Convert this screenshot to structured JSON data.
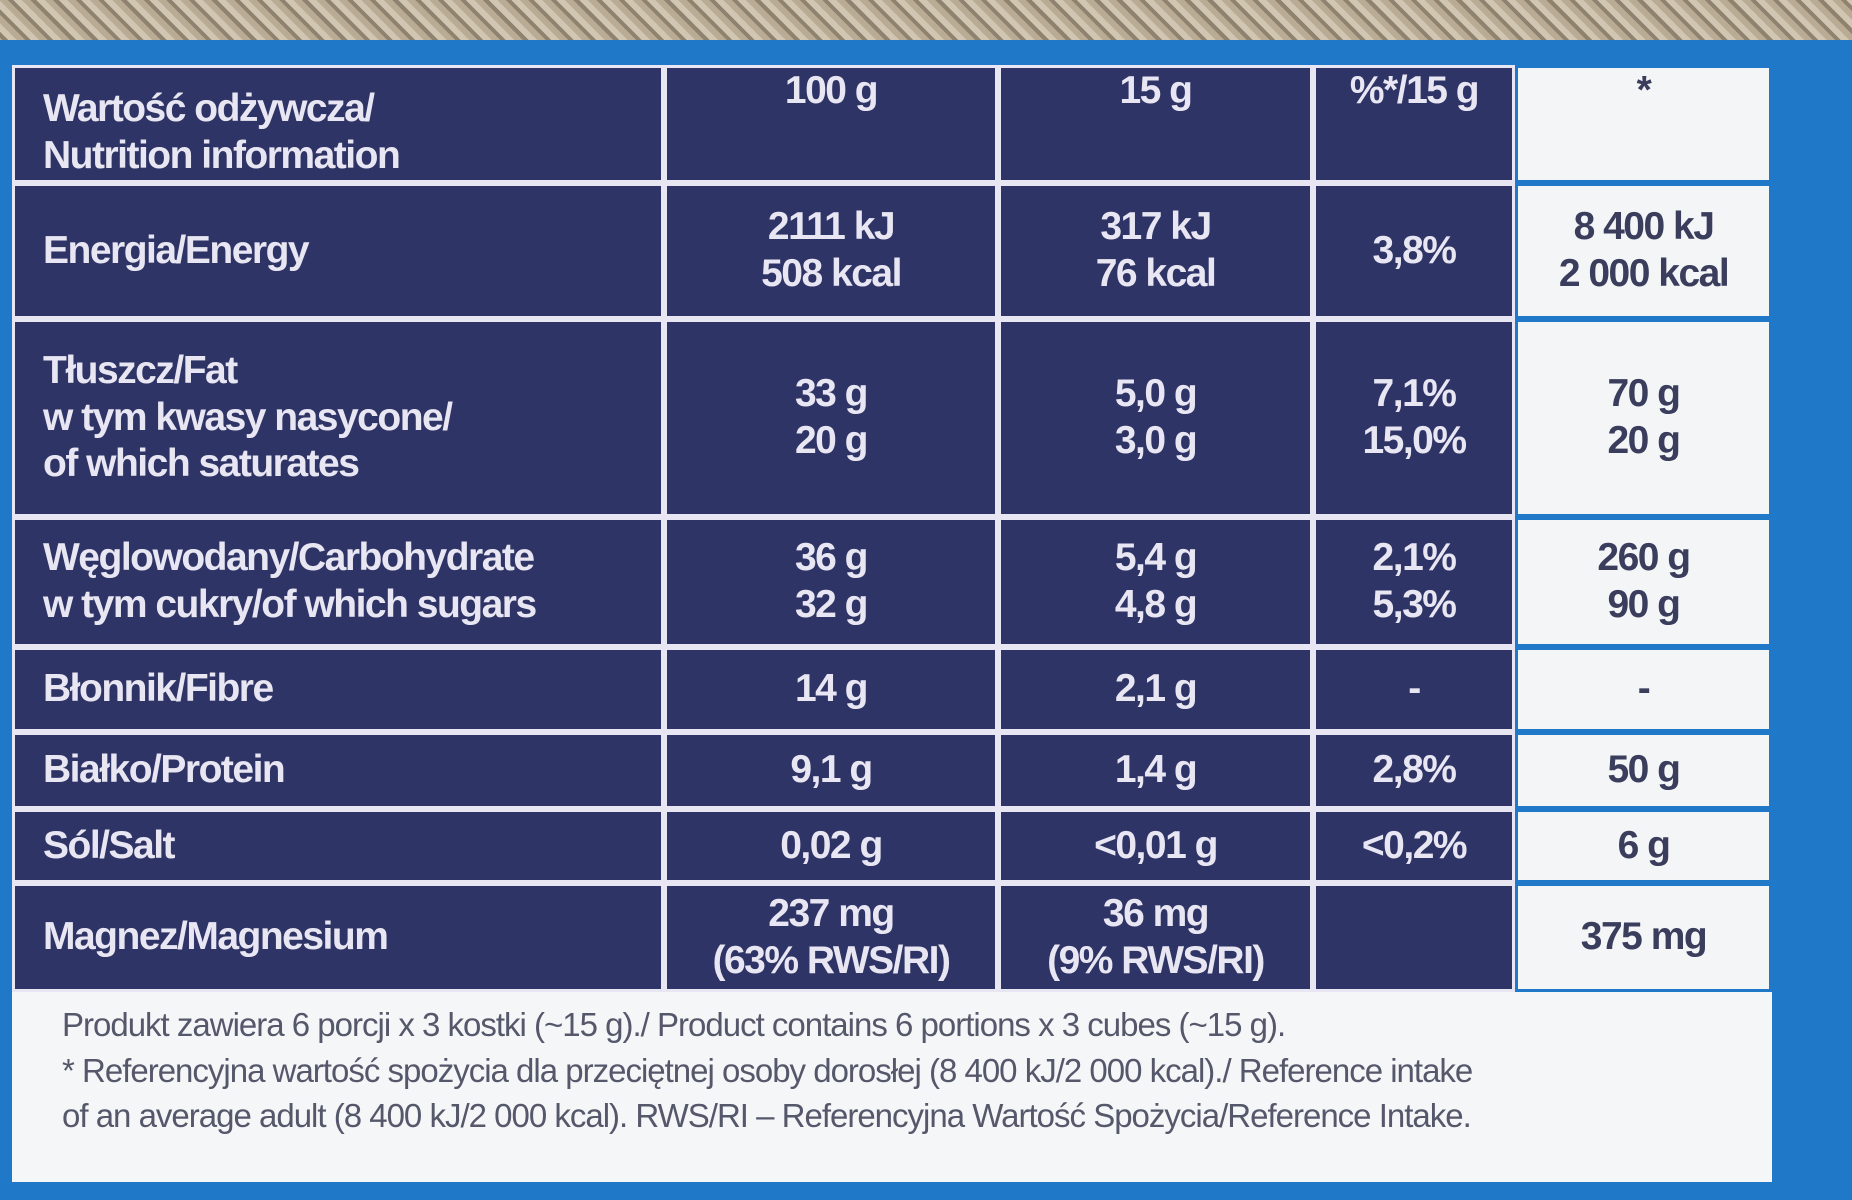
{
  "table": {
    "header": [
      [
        "Wartość odżywcza/",
        "Nutrition information"
      ],
      [
        "100 g"
      ],
      [
        "15 g"
      ],
      [
        "%*/15 g"
      ],
      [
        "*"
      ]
    ],
    "rows": [
      [
        [
          "Energia/Energy"
        ],
        [
          "2111 kJ",
          "508 kcal"
        ],
        [
          "317 kJ",
          "76 kcal"
        ],
        [
          "3,8%"
        ],
        [
          "8 400 kJ",
          "2 000 kcal"
        ]
      ],
      [
        [
          "Tłuszcz/Fat",
          "w tym kwasy nasycone/",
          "of which saturates"
        ],
        [
          "33 g",
          "20 g"
        ],
        [
          "5,0 g",
          "3,0 g"
        ],
        [
          "7,1%",
          "15,0%"
        ],
        [
          "70 g",
          "20 g"
        ]
      ],
      [
        [
          "Węglowodany/Carbohydrate",
          "w tym cukry/of which sugars"
        ],
        [
          "36 g",
          "32 g"
        ],
        [
          "5,4 g",
          "4,8 g"
        ],
        [
          "2,1%",
          "5,3%"
        ],
        [
          "260 g",
          "90 g"
        ]
      ],
      [
        [
          "Błonnik/Fibre"
        ],
        [
          "14 g"
        ],
        [
          "2,1 g"
        ],
        [
          "-"
        ],
        [
          "-"
        ]
      ],
      [
        [
          "Białko/Protein"
        ],
        [
          "9,1 g"
        ],
        [
          "1,4 g"
        ],
        [
          "2,8%"
        ],
        [
          "50 g"
        ]
      ],
      [
        [
          "Sól/Salt"
        ],
        [
          "0,02 g"
        ],
        [
          "<0,01 g"
        ],
        [
          "<0,2%"
        ],
        [
          "6 g"
        ]
      ],
      [
        [
          "Magnez/Magnesium"
        ],
        [
          "237 mg",
          "(63% RWS/RI)"
        ],
        [
          "36 mg",
          "(9% RWS/RI)"
        ],
        [],
        [
          "375 mg"
        ]
      ]
    ]
  },
  "footer": {
    "lines": [
      "Produkt zawiera 6 porcji x 3 kostki (~15 g)./ Product contains 6 portions x 3 cubes (~15 g).",
      "* Referencyjna wartość spożycia dla przeciętnej osoby dorosłej (8 400 kJ/2 000 kcal)./ Reference intake",
      "of an average adult (8 400 kJ/2 000 kcal). RWS/RI – Referencyjna Wartość Spożycia/Reference Intake."
    ]
  }
}
